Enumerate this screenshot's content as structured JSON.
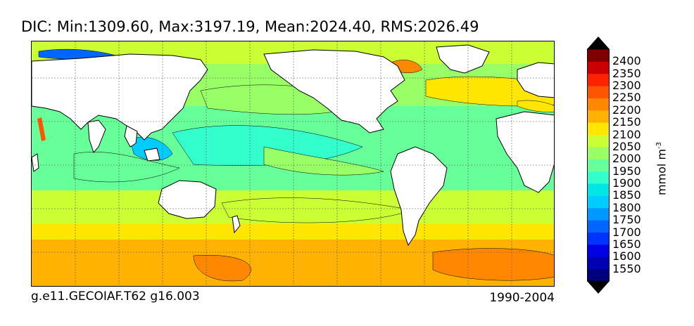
{
  "title": "DIC: Min:1309.60, Max:3197.19, Mean:2024.40, RMS:2026.49",
  "footer": {
    "left": "g.e11.GECOIAF.T62 g16.003",
    "right": "1990-2004"
  },
  "colorbar": {
    "units_base": "mmol m",
    "units_exp": "-3",
    "labels": [
      "2400",
      "2350",
      "2300",
      "2250",
      "2200",
      "2150",
      "2100",
      "2050",
      "2000",
      "1950",
      "1900",
      "1850",
      "1800",
      "1750",
      "1700",
      "1650",
      "1600",
      "1550"
    ],
    "colors": [
      "#000080",
      "#0000b4",
      "#0000e6",
      "#0033ff",
      "#0066ff",
      "#0099ff",
      "#00ccff",
      "#00e5e5",
      "#33ffcc",
      "#66ff99",
      "#99ff66",
      "#ccff33",
      "#ffe600",
      "#ffb300",
      "#ff8800",
      "#ff5500",
      "#ff2200",
      "#cc0000",
      "#800000"
    ],
    "under_color": "#000000",
    "over_color": "#000000"
  }
}
